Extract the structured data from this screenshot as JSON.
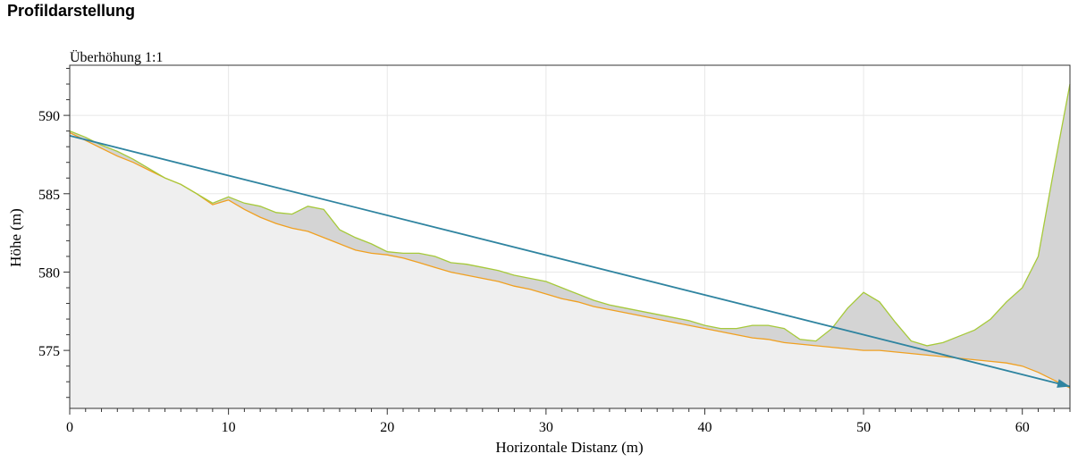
{
  "page_title": "Profildarstellung",
  "chart_data": {
    "type": "area",
    "subtitle": "Überhöhung 1:1",
    "xlabel": "Horizontale Distanz (m)",
    "ylabel": "Höhe (m)",
    "xlim": [
      0,
      63
    ],
    "ylim": [
      571.3,
      593.2
    ],
    "xticks": [
      0,
      10,
      20,
      30,
      40,
      50,
      60
    ],
    "yticks": [
      575,
      580,
      585,
      590
    ],
    "grid": true,
    "colors": {
      "terrain_line": "#a6c93a",
      "terrain_fill": "#d4d4d4",
      "lower_line": "#f0a020",
      "lower_fill": "#efefef",
      "arrow": "#2f84a0"
    },
    "series": [
      {
        "x": [
          0,
          1,
          2,
          3,
          4,
          5,
          6,
          7,
          8,
          9,
          10,
          11,
          12,
          13,
          14,
          15,
          16,
          17,
          18,
          19,
          20,
          21,
          22,
          23,
          24,
          25,
          26,
          27,
          28,
          29,
          30,
          31,
          32,
          33,
          34,
          35,
          36,
          37,
          38,
          39,
          40,
          41,
          42,
          43,
          44,
          45,
          46,
          47,
          48,
          49,
          50,
          51,
          52,
          53,
          54,
          55,
          56,
          57,
          58,
          59,
          60,
          61,
          62,
          63
        ],
        "y": [
          589.0,
          588.6,
          588.1,
          587.7,
          587.2,
          586.6,
          586.0,
          585.6,
          585.0,
          584.4,
          584.8,
          584.4,
          584.2,
          583.8,
          583.7,
          584.2,
          584.0,
          582.7,
          582.2,
          581.8,
          581.3,
          581.2,
          581.2,
          581.0,
          580.6,
          580.5,
          580.3,
          580.1,
          579.8,
          579.6,
          579.4,
          579.0,
          578.6,
          578.2,
          577.9,
          577.7,
          577.5,
          577.3,
          577.1,
          576.9,
          576.6,
          576.4,
          576.4,
          576.6,
          576.6,
          576.4,
          575.7,
          575.6,
          576.4,
          577.7,
          578.7,
          578.1,
          576.8,
          575.6,
          575.3,
          575.5,
          575.9,
          576.3,
          577.0,
          578.1,
          579.0,
          581.0,
          586.6,
          592.0
        ]
      },
      {
        "x": [
          0,
          1,
          2,
          3,
          4,
          5,
          6,
          7,
          8,
          9,
          10,
          11,
          12,
          13,
          14,
          15,
          16,
          17,
          18,
          19,
          20,
          21,
          22,
          23,
          24,
          25,
          26,
          27,
          28,
          29,
          30,
          31,
          32,
          33,
          34,
          35,
          36,
          37,
          38,
          39,
          40,
          41,
          42,
          43,
          44,
          45,
          46,
          47,
          48,
          49,
          50,
          51,
          52,
          53,
          54,
          55,
          56,
          57,
          58,
          59,
          60,
          61,
          62,
          63
        ],
        "y": [
          588.9,
          588.4,
          587.9,
          587.4,
          587.0,
          586.5,
          586.0,
          585.6,
          585.0,
          584.3,
          584.6,
          584.0,
          583.5,
          583.1,
          582.8,
          582.6,
          582.2,
          581.8,
          581.4,
          581.2,
          581.1,
          580.9,
          580.6,
          580.3,
          580.0,
          579.8,
          579.6,
          579.4,
          579.1,
          578.9,
          578.6,
          578.3,
          578.1,
          577.8,
          577.6,
          577.4,
          577.2,
          577.0,
          576.8,
          576.6,
          576.4,
          576.2,
          576.0,
          575.8,
          575.7,
          575.5,
          575.4,
          575.3,
          575.2,
          575.1,
          575.0,
          575.0,
          574.9,
          574.8,
          574.7,
          574.6,
          574.5,
          574.4,
          574.3,
          574.2,
          574.0,
          573.6,
          573.1,
          572.6
        ]
      }
    ],
    "arrow": {
      "x": [
        0,
        63
      ],
      "y": [
        588.7,
        572.7
      ]
    }
  }
}
